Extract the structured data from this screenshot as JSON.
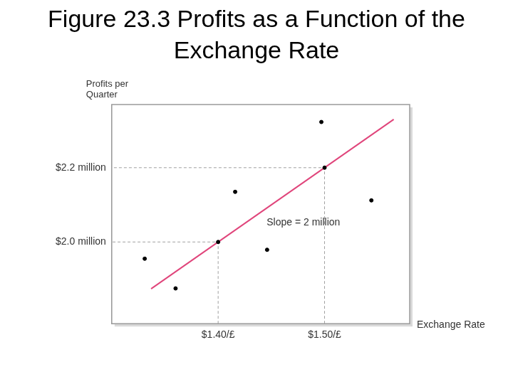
{
  "chart_data": {
    "type": "scatter",
    "title": "Figure 23.3 Profits as a Function of the Exchange Rate",
    "x_label": "Exchange Rate",
    "y_label": "Profits per Quarter",
    "annotation": "Slope = 2 million",
    "xlim": [
      1.3,
      1.58
    ],
    "ylim": [
      1.78,
      2.37
    ],
    "xticks": [
      {
        "value": 1.4,
        "label": "$1.40/£"
      },
      {
        "value": 1.5,
        "label": "$1.50/£"
      }
    ],
    "yticks": [
      {
        "value": 2.0,
        "label": "$2.0 million"
      },
      {
        "value": 2.2,
        "label": "$2.2 million"
      }
    ],
    "grid": false,
    "series": [
      {
        "type": "scatter",
        "color": "#000000",
        "marker": "circle",
        "x": [
          1.331,
          1.36,
          1.4,
          1.416,
          1.446,
          1.497,
          1.5,
          1.544
        ],
        "values": [
          1.955,
          1.875,
          2.0,
          2.135,
          1.979,
          2.323,
          2.2,
          2.112
        ]
      },
      {
        "type": "line",
        "color": "#e0457b",
        "line_style": "solid",
        "x": [
          1.337,
          1.565
        ],
        "values": [
          1.874,
          2.33
        ]
      }
    ]
  }
}
